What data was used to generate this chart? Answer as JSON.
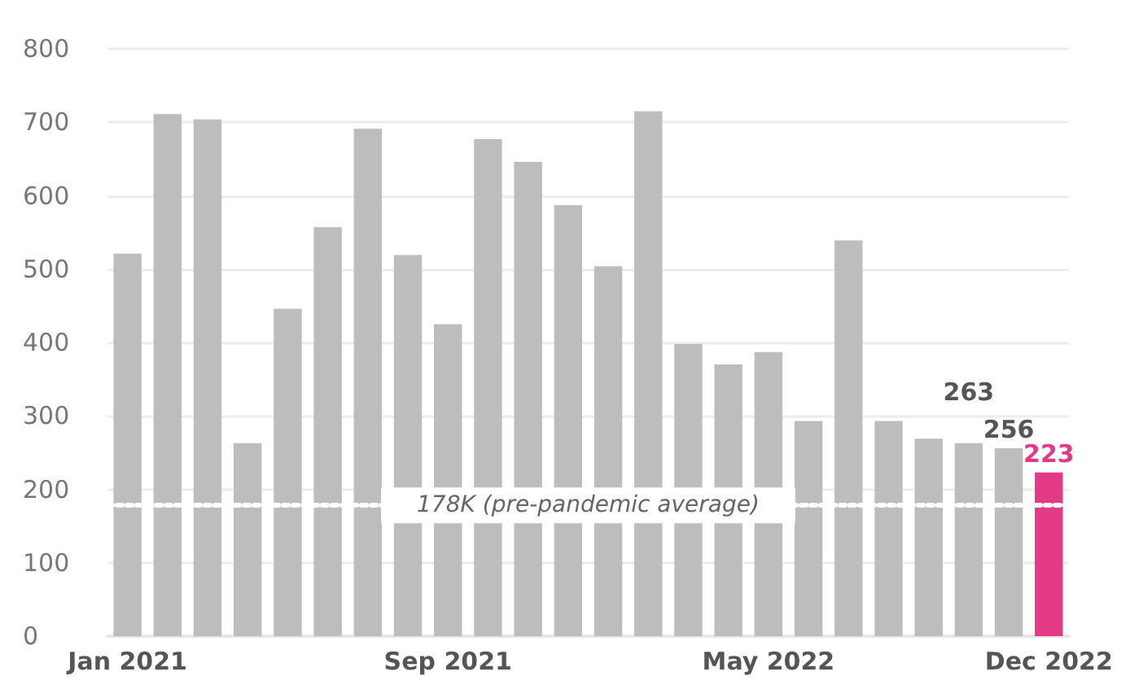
{
  "chart_data": {
    "type": "bar",
    "categories": [
      "Jan 2021",
      null,
      null,
      null,
      null,
      null,
      null,
      null,
      "Sep 2021",
      null,
      null,
      null,
      null,
      null,
      null,
      null,
      "May 2022",
      null,
      null,
      null,
      null,
      null,
      null,
      "Dec 2022"
    ],
    "values": [
      521,
      711,
      704,
      263,
      446,
      557,
      691,
      519,
      425,
      677,
      646,
      587,
      504,
      715,
      398,
      370,
      387,
      293,
      539,
      293,
      269,
      263,
      256,
      223
    ],
    "colors": [
      "#bdbdbd",
      "#bdbdbd",
      "#bdbdbd",
      "#bdbdbd",
      "#bdbdbd",
      "#bdbdbd",
      "#bdbdbd",
      "#bdbdbd",
      "#bdbdbd",
      "#bdbdbd",
      "#bdbdbd",
      "#bdbdbd",
      "#bdbdbd",
      "#bdbdbd",
      "#bdbdbd",
      "#bdbdbd",
      "#bdbdbd",
      "#bdbdbd",
      "#bdbdbd",
      "#bdbdbd",
      "#bdbdbd",
      "#bdbdbd",
      "#bdbdbd",
      "#e33a87"
    ],
    "value_labels": [
      null,
      null,
      null,
      null,
      null,
      null,
      null,
      null,
      null,
      null,
      null,
      null,
      null,
      null,
      null,
      null,
      null,
      null,
      null,
      null,
      null,
      "263",
      "256",
      "223"
    ],
    "ylim": [
      0,
      800
    ],
    "yticks": [
      0,
      100,
      200,
      300,
      400,
      500,
      600,
      700,
      800
    ],
    "grid": "y",
    "ref_lines": [
      {
        "axis": "y",
        "value": 178,
        "label": "178K (pre-pandemic average)",
        "color": "#ffffff",
        "line_style": "dotted"
      }
    ]
  }
}
